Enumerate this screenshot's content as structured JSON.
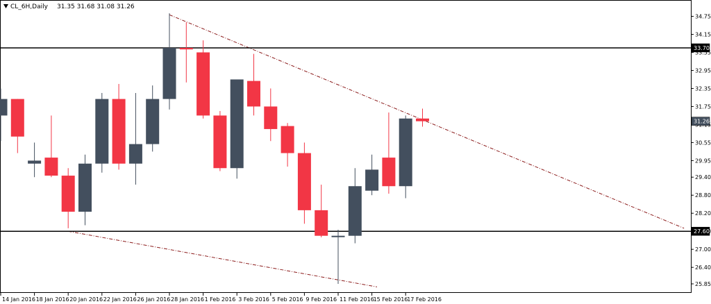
{
  "chart_data": {
    "type": "candlestick",
    "title": "CL_6H,Daily",
    "ohlc_label": "31.35 31.68 31.08 31.26",
    "colors": {
      "up": "#434f5e",
      "down": "#f23645",
      "level": "#000000",
      "trend": "#8b1a1a"
    },
    "grid": false,
    "ylim": [
      25.55,
      35.2
    ],
    "y_ticks": [
      "34.75",
      "34.15",
      "33.55",
      "32.95",
      "32.35",
      "31.75",
      "31.15",
      "30.55",
      "29.95",
      "29.40",
      "28.80",
      "28.20",
      "27.60",
      "27.00",
      "26.40",
      "25.85"
    ],
    "x_labels": [
      {
        "label": "14 Jan 2016",
        "i": 0
      },
      {
        "label": "18 Jan 2016",
        "i": 2
      },
      {
        "label": "20 Jan 2016",
        "i": 4
      },
      {
        "label": "22 Jan 2016",
        "i": 6
      },
      {
        "label": "26 Jan 2016",
        "i": 8
      },
      {
        "label": "28 Jan 2016",
        "i": 10
      },
      {
        "label": "1 Feb 2016",
        "i": 12
      },
      {
        "label": "3 Feb 2016",
        "i": 14
      },
      {
        "label": "5 Feb 2016",
        "i": 16
      },
      {
        "label": "9 Feb 2016",
        "i": 18
      },
      {
        "label": "11 Feb 2016",
        "i": 20
      },
      {
        "label": "15 Feb 2016",
        "i": 22
      },
      {
        "label": "17 Feb 2016",
        "i": 24
      }
    ],
    "candles": [
      {
        "o": 31.45,
        "h": 32.35,
        "l": 30.6,
        "c": 32.0
      },
      {
        "o": 32.0,
        "h": 32.0,
        "l": 30.2,
        "c": 30.75
      },
      {
        "o": 29.85,
        "h": 30.55,
        "l": 29.4,
        "c": 29.95
      },
      {
        "o": 30.05,
        "h": 31.45,
        "l": 29.4,
        "c": 29.45
      },
      {
        "o": 29.45,
        "h": 29.7,
        "l": 27.7,
        "c": 28.25
      },
      {
        "o": 28.25,
        "h": 30.15,
        "l": 27.8,
        "c": 29.85
      },
      {
        "o": 29.85,
        "h": 32.2,
        "l": 29.55,
        "c": 32.0
      },
      {
        "o": 32.0,
        "h": 32.5,
        "l": 29.65,
        "c": 29.85
      },
      {
        "o": 29.85,
        "h": 32.2,
        "l": 29.15,
        "c": 30.5
      },
      {
        "o": 30.5,
        "h": 32.45,
        "l": 30.25,
        "c": 32.0
      },
      {
        "o": 32.0,
        "h": 34.85,
        "l": 31.65,
        "c": 33.7
      },
      {
        "o": 33.7,
        "h": 34.55,
        "l": 32.55,
        "c": 33.65
      },
      {
        "o": 33.55,
        "h": 33.95,
        "l": 31.35,
        "c": 31.45
      },
      {
        "o": 31.45,
        "h": 31.6,
        "l": 29.6,
        "c": 29.7
      },
      {
        "o": 29.7,
        "h": 32.65,
        "l": 29.35,
        "c": 32.65
      },
      {
        "o": 32.6,
        "h": 33.5,
        "l": 31.45,
        "c": 31.75
      },
      {
        "o": 31.75,
        "h": 32.35,
        "l": 30.6,
        "c": 31.0
      },
      {
        "o": 31.1,
        "h": 31.2,
        "l": 29.75,
        "c": 30.2
      },
      {
        "o": 30.2,
        "h": 30.55,
        "l": 27.85,
        "c": 28.3
      },
      {
        "o": 28.3,
        "h": 29.15,
        "l": 27.4,
        "c": 27.45
      },
      {
        "o": 27.45,
        "h": 27.65,
        "l": 25.85,
        "c": 27.45
      },
      {
        "o": 27.45,
        "h": 29.7,
        "l": 27.2,
        "c": 29.1
      },
      {
        "o": 28.95,
        "h": 30.15,
        "l": 28.8,
        "c": 29.65
      },
      {
        "o": 30.05,
        "h": 31.55,
        "l": 28.85,
        "c": 29.1
      },
      {
        "o": 29.1,
        "h": 31.45,
        "l": 28.7,
        "c": 31.35
      },
      {
        "o": 31.35,
        "h": 31.68,
        "l": 31.08,
        "c": 31.26
      }
    ],
    "levels": [
      {
        "price": 33.7,
        "label": "33.70"
      },
      {
        "price": 27.6,
        "label": "27.60"
      }
    ],
    "current": {
      "price": 31.26,
      "label": "31.26"
    },
    "trendlines": [
      {
        "from": {
          "i": 10,
          "p": 34.8
        },
        "to": {
          "i": 40.5,
          "p": 27.7
        }
      },
      {
        "from": {
          "i": 4,
          "p": 27.6
        },
        "to": {
          "i": 22.3,
          "p": 25.75
        }
      }
    ]
  }
}
